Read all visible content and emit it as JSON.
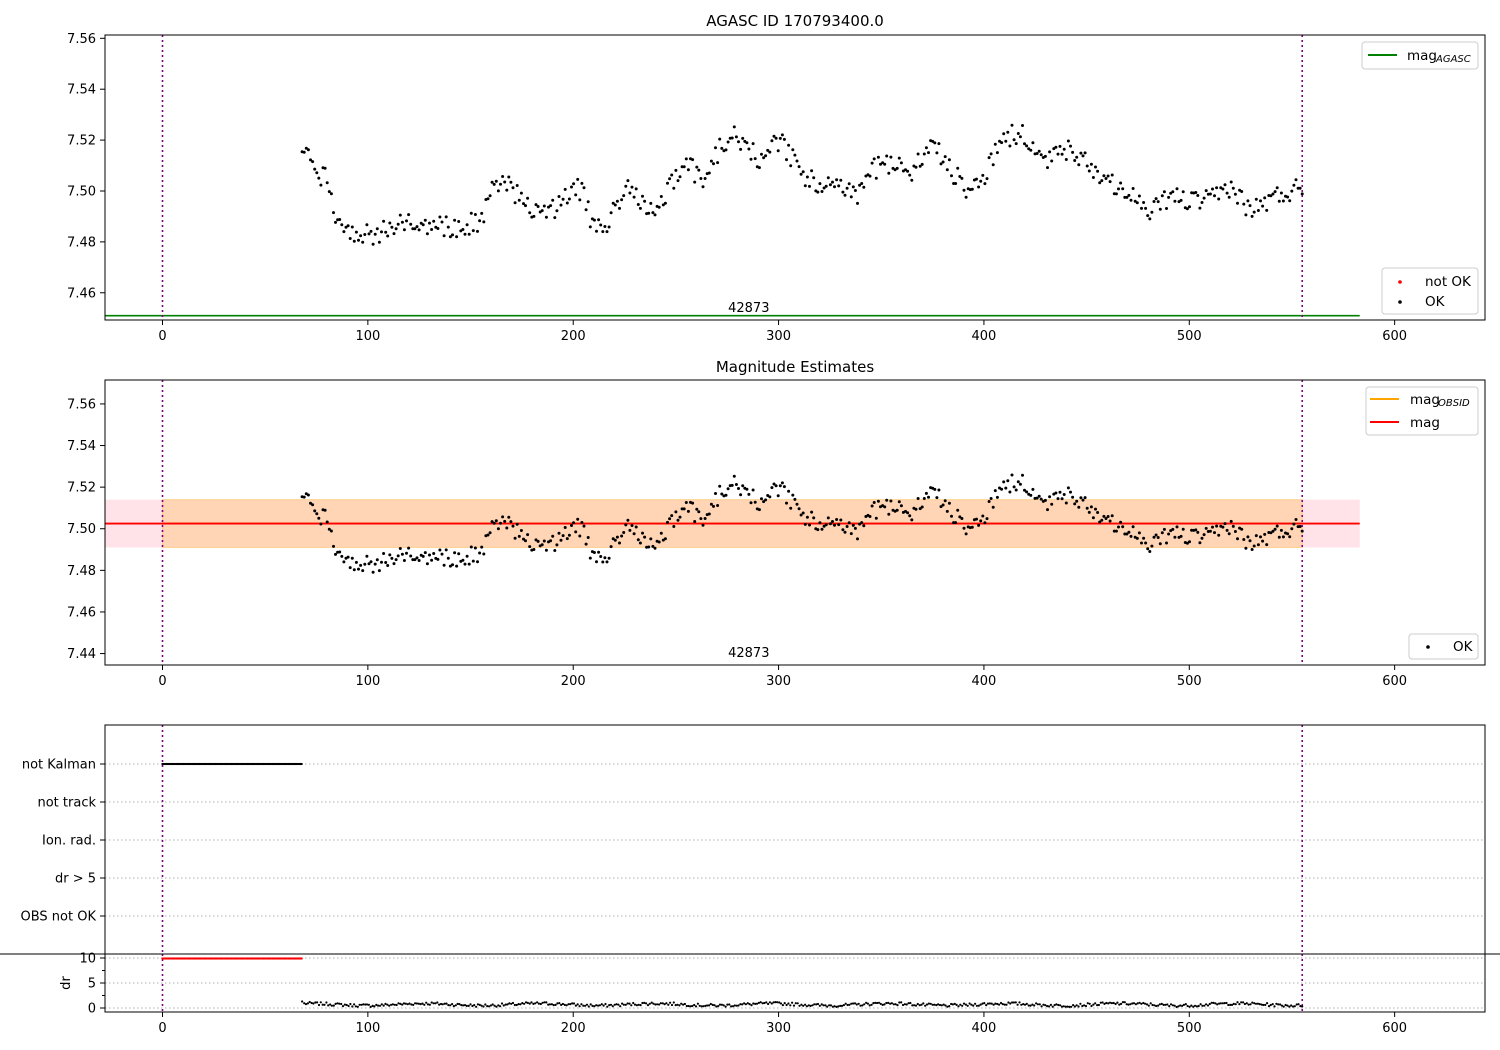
{
  "chart_data": [
    {
      "id": "top",
      "type": "scatter",
      "title": "AGASC ID 170793400.0",
      "xlim": [
        -28,
        644
      ],
      "ylim": [
        7.4493,
        7.5613
      ],
      "xticks": [
        0,
        100,
        200,
        300,
        400,
        500,
        600
      ],
      "yticks": [
        7.46,
        7.48,
        7.5,
        7.52,
        7.54,
        7.56
      ],
      "ytick_labels": [
        "7.46",
        "7.48",
        "7.50",
        "7.52",
        "7.54",
        "7.56"
      ],
      "obs_lines": [
        0,
        555
      ],
      "obs_label": "42873",
      "mag_agasc": 7.451,
      "mag_agasc_xrange": [
        -28,
        583
      ],
      "series": [
        {
          "name": "not OK",
          "color": "#ff0000",
          "points": []
        },
        {
          "name": "OK",
          "color": "#000000"
        }
      ],
      "legend_upper": [
        {
          "label": "mag",
          "sub": "AGASC",
          "color": "#008000"
        }
      ],
      "legend_lower": [
        {
          "label": "not OK",
          "color": "#ff0000"
        },
        {
          "label": "OK",
          "color": "#000000"
        }
      ]
    },
    {
      "id": "middle",
      "type": "scatter",
      "title": "Magnitude Estimates",
      "xlim": [
        -28,
        644
      ],
      "ylim": [
        7.4345,
        7.5715
      ],
      "xticks": [
        0,
        100,
        200,
        300,
        400,
        500,
        600
      ],
      "yticks": [
        7.44,
        7.46,
        7.48,
        7.5,
        7.52,
        7.54,
        7.56
      ],
      "ytick_labels": [
        "7.44",
        "7.46",
        "7.48",
        "7.50",
        "7.52",
        "7.54",
        "7.56"
      ],
      "obs_lines": [
        0,
        555
      ],
      "obs_label": "42873",
      "mag": 7.5025,
      "mag_band": [
        7.491,
        7.514
      ],
      "mag_band_xrange": [
        -28,
        583
      ],
      "mag_obsid": 7.5025,
      "mag_obsid_band": [
        7.491,
        7.514
      ],
      "mag_obsid_xrange": [
        0,
        555
      ],
      "legend_upper": [
        {
          "label": "mag",
          "sub": "OBSID",
          "color": "#ffa500"
        },
        {
          "label": "mag",
          "sub": "",
          "color": "#ff0000"
        }
      ],
      "legend_lower": [
        {
          "label": "OK",
          "color": "#000000"
        }
      ]
    },
    {
      "id": "flags",
      "type": "scatter",
      "xlim": [
        -28,
        644
      ],
      "categories": [
        "not Kalman",
        "not track",
        "Ion. rad.",
        "dr > 5",
        "OBS not OK"
      ],
      "flag_points": [
        {
          "category": "not Kalman",
          "x_range": [
            0,
            68
          ]
        }
      ],
      "obs_lines": [
        0,
        555
      ]
    },
    {
      "id": "dr",
      "type": "line",
      "ylabel": "dr",
      "xlim": [
        -28,
        644
      ],
      "ylim": [
        -0.8,
        10.8
      ],
      "xticks": [
        0,
        100,
        200,
        300,
        400,
        500,
        600
      ],
      "yticks": [
        0,
        5,
        10
      ],
      "ytick_labels": [
        "0",
        "5",
        "10"
      ],
      "obs_lines": [
        0,
        555
      ],
      "dr_saturated": {
        "value": 9.9,
        "x_range": [
          0,
          68
        ],
        "color": "#ff0000"
      },
      "dr_tracked": {
        "x_range": [
          68,
          555
        ],
        "mean": 0.7
      }
    }
  ],
  "scatter_model": {
    "x_start": 68,
    "x_end": 555,
    "count": 480,
    "knots_x": [
      68,
      72,
      76,
      80,
      84,
      88,
      95,
      105,
      115,
      125,
      135,
      145,
      155,
      160,
      165,
      175,
      185,
      195,
      200,
      205,
      210,
      215,
      220,
      225,
      232,
      240,
      250,
      255,
      262,
      270,
      278,
      285,
      292,
      300,
      305,
      312,
      320,
      330,
      338,
      345,
      355,
      365,
      375,
      383,
      393,
      400,
      408,
      418,
      428,
      438,
      445,
      452,
      460,
      470,
      480,
      490,
      500,
      510,
      520,
      530,
      540,
      555
    ],
    "knots_y": [
      7.512,
      7.515,
      7.504,
      7.508,
      7.492,
      7.485,
      7.484,
      7.483,
      7.488,
      7.488,
      7.486,
      7.486,
      7.488,
      7.5,
      7.504,
      7.497,
      7.49,
      7.496,
      7.504,
      7.498,
      7.486,
      7.483,
      7.492,
      7.502,
      7.496,
      7.492,
      7.506,
      7.514,
      7.503,
      7.515,
      7.524,
      7.516,
      7.512,
      7.52,
      7.515,
      7.506,
      7.503,
      7.505,
      7.496,
      7.508,
      7.511,
      7.508,
      7.519,
      7.509,
      7.5,
      7.506,
      7.52,
      7.523,
      7.51,
      7.517,
      7.514,
      7.51,
      7.504,
      7.501,
      7.49,
      7.498,
      7.496,
      7.496,
      7.502,
      7.492,
      7.497,
      7.502
    ],
    "noise": 0.0042,
    "seed": 42873
  }
}
